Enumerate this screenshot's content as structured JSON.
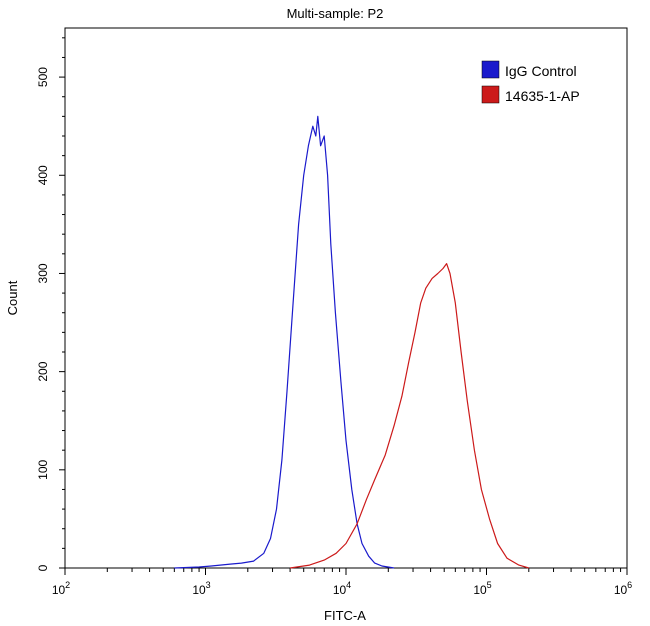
{
  "chart_data": {
    "type": "line",
    "title": "Multi-sample: P2",
    "xlabel": "FITC-A",
    "ylabel": "Count",
    "x_scale": "log",
    "xlim": [
      100,
      1000000
    ],
    "ylim": [
      0,
      550
    ],
    "x_ticks": [
      {
        "value": 100,
        "base": "10",
        "exp": "2"
      },
      {
        "value": 1000,
        "base": "10",
        "exp": "3"
      },
      {
        "value": 10000,
        "base": "10",
        "exp": "4"
      },
      {
        "value": 100000,
        "base": "10",
        "exp": "5"
      },
      {
        "value": 1000000,
        "base": "10",
        "exp": "6"
      }
    ],
    "y_ticks": [
      0,
      100,
      200,
      300,
      400,
      500
    ],
    "legend_position": "top-right",
    "grid": false,
    "series": [
      {
        "name": "IgG Control",
        "color": "#1a1acc",
        "points": [
          [
            600,
            0
          ],
          [
            900,
            1
          ],
          [
            1100,
            2
          ],
          [
            1500,
            4
          ],
          [
            1800,
            5
          ],
          [
            2200,
            7
          ],
          [
            2600,
            15
          ],
          [
            2900,
            30
          ],
          [
            3200,
            60
          ],
          [
            3500,
            110
          ],
          [
            3800,
            180
          ],
          [
            4200,
            270
          ],
          [
            4600,
            350
          ],
          [
            5000,
            400
          ],
          [
            5400,
            430
          ],
          [
            5800,
            450
          ],
          [
            6100,
            440
          ],
          [
            6300,
            460
          ],
          [
            6600,
            430
          ],
          [
            7000,
            440
          ],
          [
            7400,
            400
          ],
          [
            7800,
            330
          ],
          [
            8400,
            260
          ],
          [
            9200,
            190
          ],
          [
            10000,
            130
          ],
          [
            11000,
            80
          ],
          [
            12000,
            45
          ],
          [
            13000,
            25
          ],
          [
            14500,
            12
          ],
          [
            16000,
            5
          ],
          [
            18000,
            2
          ],
          [
            22000,
            0
          ]
        ]
      },
      {
        "name": "14635-1-AP",
        "color": "#cc1a1a",
        "points": [
          [
            4000,
            0
          ],
          [
            5500,
            3
          ],
          [
            7000,
            8
          ],
          [
            8500,
            15
          ],
          [
            10000,
            25
          ],
          [
            12000,
            45
          ],
          [
            14000,
            70
          ],
          [
            16000,
            90
          ],
          [
            19000,
            115
          ],
          [
            22000,
            145
          ],
          [
            25000,
            175
          ],
          [
            28000,
            210
          ],
          [
            31000,
            240
          ],
          [
            34000,
            270
          ],
          [
            37000,
            285
          ],
          [
            41000,
            295
          ],
          [
            45000,
            300
          ],
          [
            49000,
            305
          ],
          [
            52000,
            310
          ],
          [
            55000,
            300
          ],
          [
            60000,
            270
          ],
          [
            66000,
            220
          ],
          [
            73000,
            170
          ],
          [
            82000,
            120
          ],
          [
            92000,
            80
          ],
          [
            105000,
            50
          ],
          [
            120000,
            25
          ],
          [
            140000,
            10
          ],
          [
            170000,
            3
          ],
          [
            200000,
            0
          ]
        ]
      }
    ]
  }
}
